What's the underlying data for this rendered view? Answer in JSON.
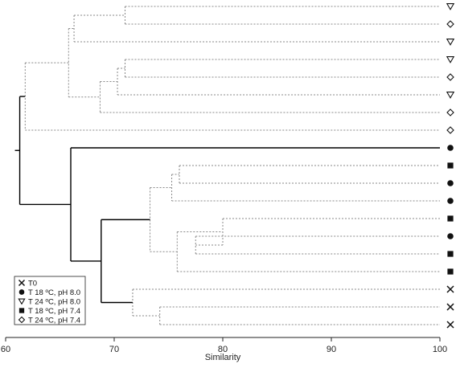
{
  "chart_data": {
    "type": "dendrogram",
    "xlabel": "Similarity",
    "xlim": [
      60,
      100
    ],
    "xticks": [
      60,
      70,
      80,
      90,
      100
    ],
    "xtick_labels": [
      "60",
      "70",
      "80",
      "90",
      "100"
    ],
    "legend": {
      "placement": "bottom-left",
      "entries": [
        {
          "symbol": "cross",
          "label": "T0"
        },
        {
          "symbol": "circle",
          "label": "T 18 ºC, pH 8.0"
        },
        {
          "symbol": "triangle-down",
          "label": "T 24 ºC, pH 8.0"
        },
        {
          "symbol": "square",
          "label": "T 18 ºC, pH 7.4"
        },
        {
          "symbol": "diamond",
          "label": "T 24 ºC, pH 7.4"
        }
      ]
    },
    "leaves": [
      {
        "symbol": "triangle-down"
      },
      {
        "symbol": "diamond"
      },
      {
        "symbol": "triangle-down"
      },
      {
        "symbol": "triangle-down"
      },
      {
        "symbol": "diamond"
      },
      {
        "symbol": "triangle-down"
      },
      {
        "symbol": "diamond"
      },
      {
        "symbol": "diamond"
      },
      {
        "symbol": "circle"
      },
      {
        "symbol": "square"
      },
      {
        "symbol": "circle"
      },
      {
        "symbol": "circle"
      },
      {
        "symbol": "square"
      },
      {
        "symbol": "circle"
      },
      {
        "symbol": "square"
      },
      {
        "symbol": "square"
      },
      {
        "symbol": "cross"
      },
      {
        "symbol": "cross"
      },
      {
        "symbol": "cross"
      }
    ],
    "merges": [
      {
        "a": "L0",
        "b": "L1",
        "similarity": 71.0,
        "significant": false
      },
      {
        "a": "M0",
        "b": "L2",
        "similarity": 66.3,
        "significant": false
      },
      {
        "a": "L3",
        "b": "L4",
        "similarity": 71.0,
        "significant": false
      },
      {
        "a": "M2",
        "b": "L5",
        "similarity": 70.3,
        "significant": false
      },
      {
        "a": "M3",
        "b": "L6",
        "similarity": 68.7,
        "significant": false
      },
      {
        "a": "M1",
        "b": "M4",
        "similarity": 65.8,
        "significant": false
      },
      {
        "a": "M5",
        "b": "L7",
        "similarity": 61.8,
        "significant": false
      },
      {
        "a": "L9",
        "b": "L10",
        "similarity": 76.0,
        "significant": false
      },
      {
        "a": "M7",
        "b": "L11",
        "similarity": 75.3,
        "significant": false
      },
      {
        "a": "L13",
        "b": "L14",
        "similarity": 77.5,
        "significant": false
      },
      {
        "a": "L12",
        "b": "M9",
        "similarity": 80.0,
        "significant": false
      },
      {
        "a": "M10",
        "b": "L15",
        "similarity": 75.8,
        "significant": false
      },
      {
        "a": "M8",
        "b": "M11",
        "similarity": 73.3,
        "significant": false
      },
      {
        "a": "L17",
        "b": "L18",
        "similarity": 74.2,
        "significant": false
      },
      {
        "a": "L16",
        "b": "M13",
        "similarity": 71.7,
        "significant": false
      },
      {
        "a": "M12",
        "b": "M14",
        "similarity": 68.8,
        "significant": true
      },
      {
        "a": "L8",
        "b": "M15",
        "similarity": 66.0,
        "significant": true
      },
      {
        "a": "M6",
        "b": "M16",
        "similarity": 61.3,
        "significant": true
      }
    ]
  }
}
